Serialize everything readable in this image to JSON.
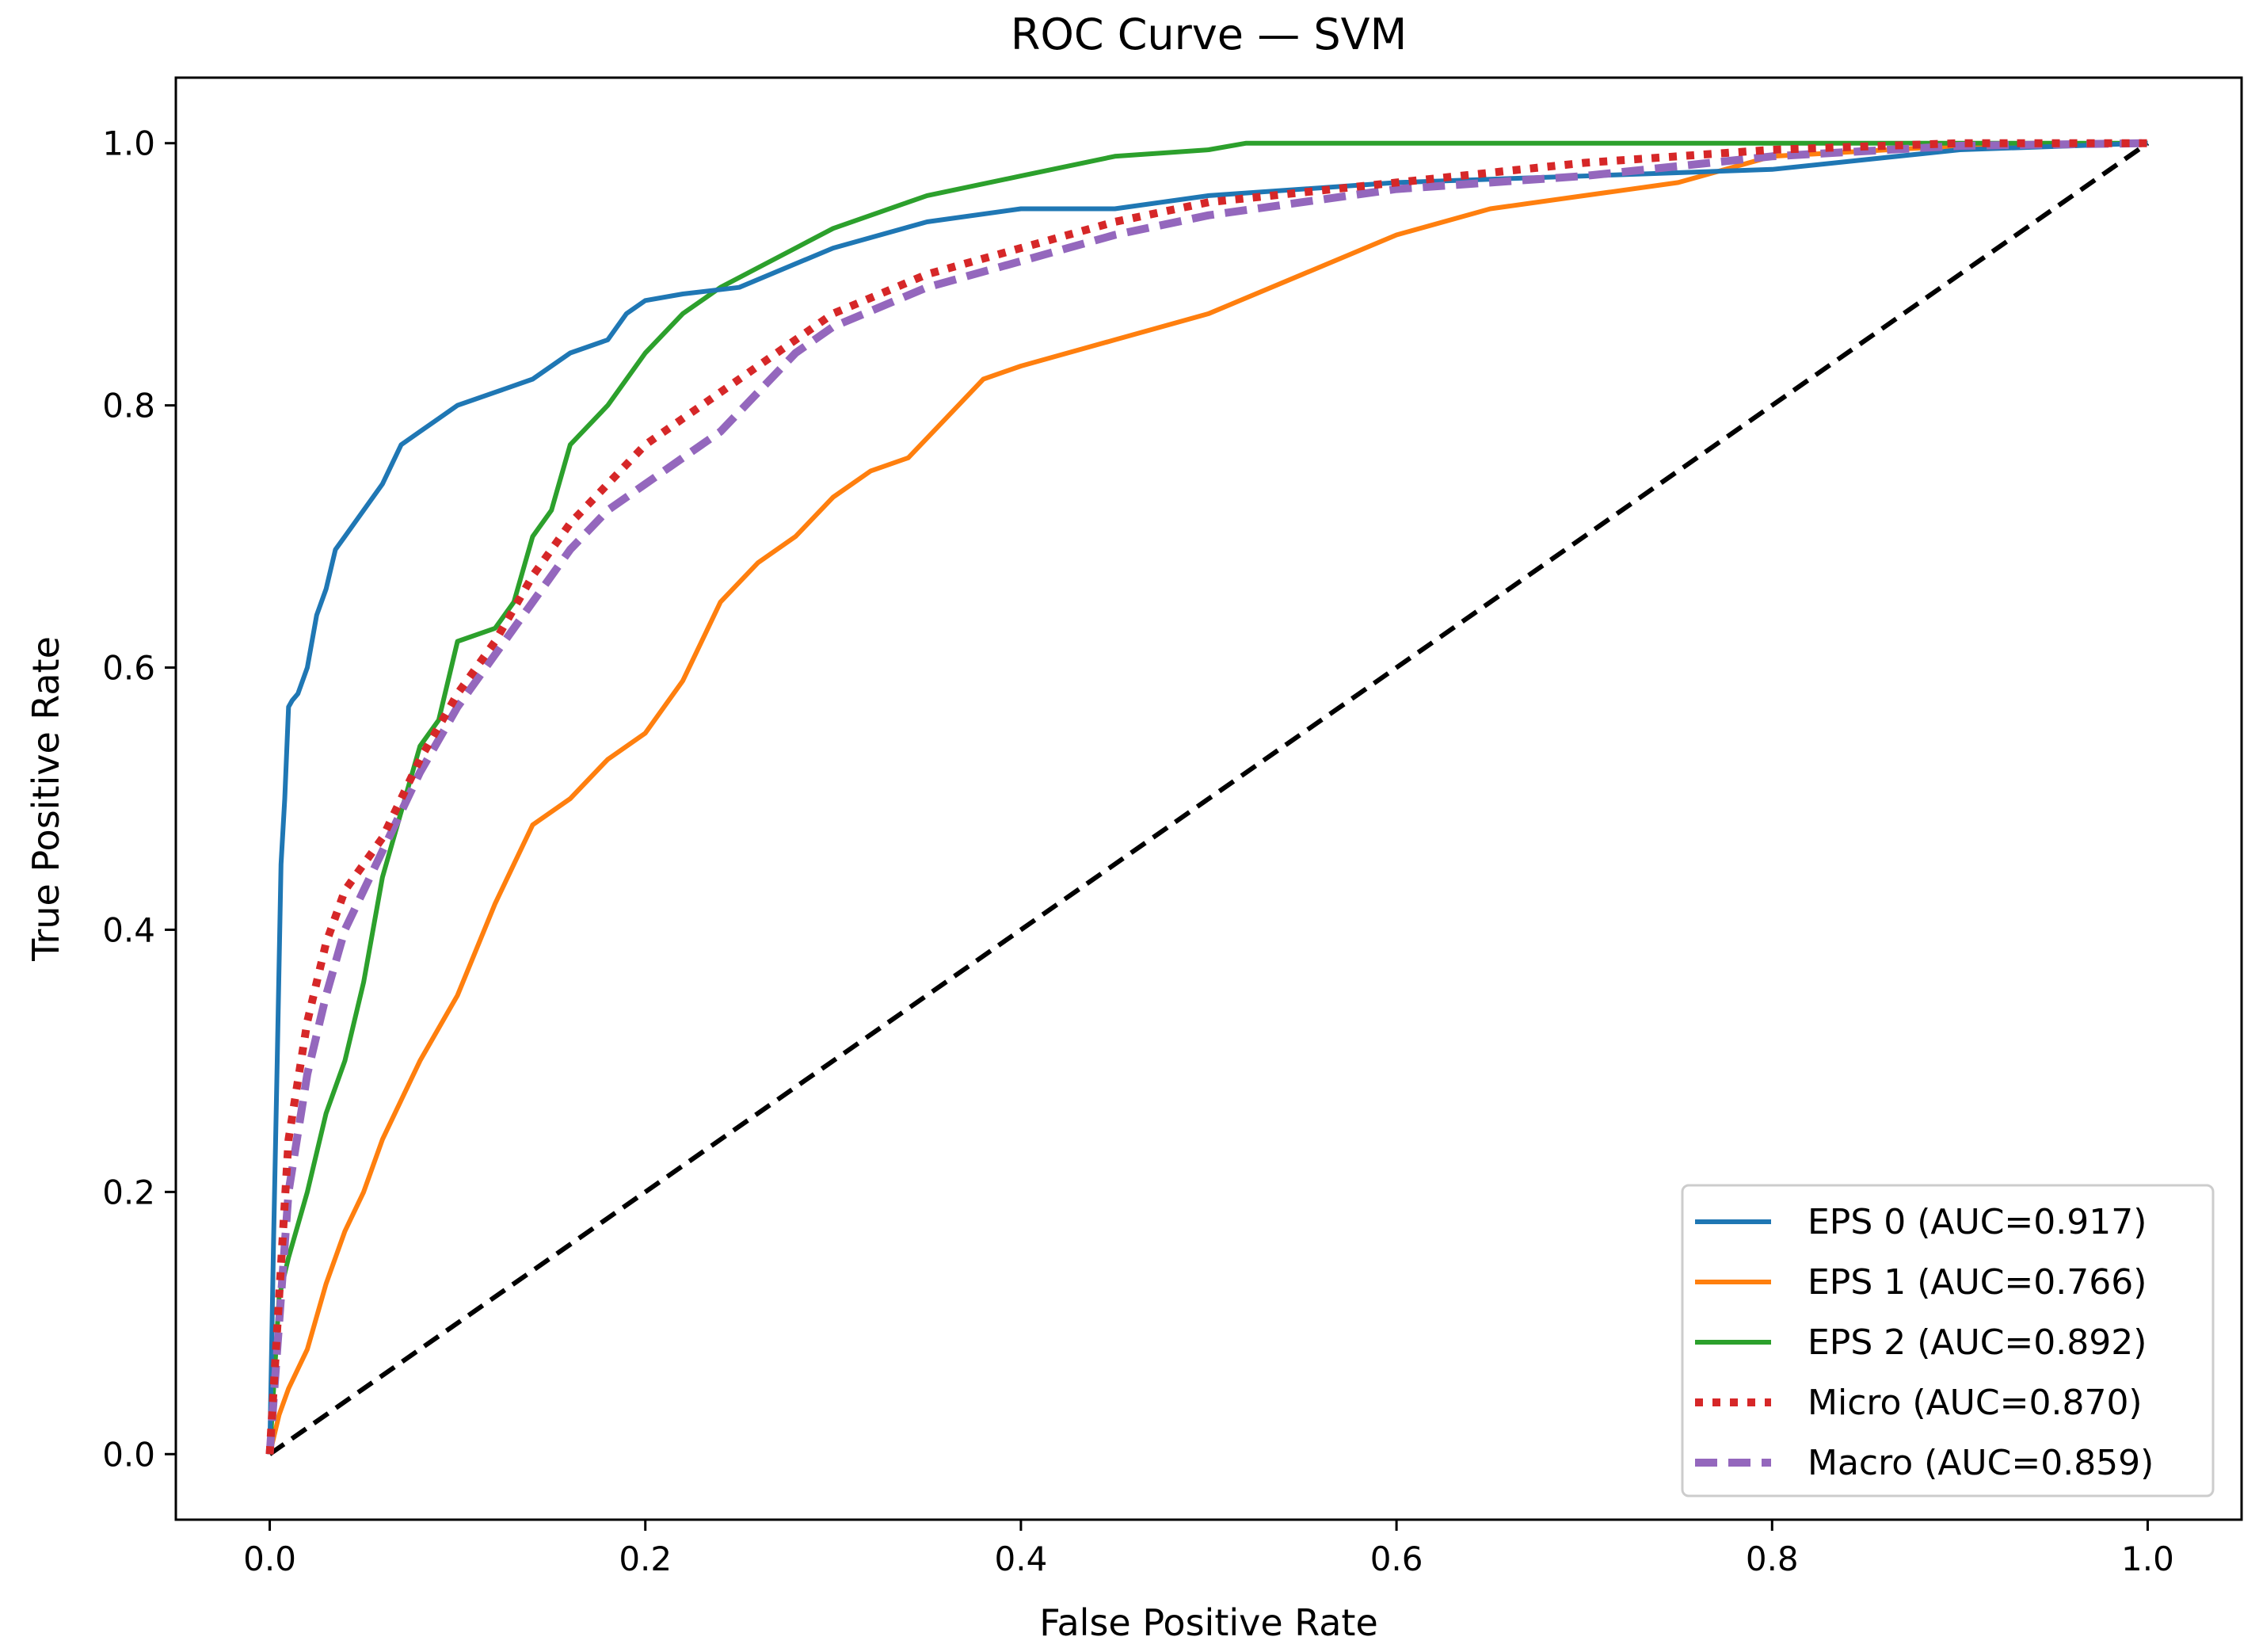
{
  "chart_data": {
    "type": "line",
    "title": "ROC Curve — SVM",
    "xlabel": "False Positive Rate",
    "ylabel": "True Positive Rate",
    "xlim": [
      -0.05,
      1.05
    ],
    "ylim": [
      -0.05,
      1.05
    ],
    "xticks": [
      0.0,
      0.2,
      0.4,
      0.6,
      0.8,
      1.0
    ],
    "yticks": [
      0.0,
      0.2,
      0.4,
      0.6,
      0.8,
      1.0
    ],
    "xtick_labels": [
      "0.0",
      "0.2",
      "0.4",
      "0.6",
      "0.8",
      "1.0"
    ],
    "ytick_labels": [
      "0.0",
      "0.2",
      "0.4",
      "0.6",
      "0.8",
      "1.0"
    ],
    "legend_position": "lower-right",
    "series": [
      {
        "name": "EPS 0",
        "label": "EPS 0 (AUC=0.917)",
        "auc": 0.917,
        "color": "#1f77b4",
        "style": "solid",
        "x": [
          0.0,
          0.002,
          0.004,
          0.006,
          0.008,
          0.01,
          0.012,
          0.015,
          0.02,
          0.025,
          0.03,
          0.035,
          0.04,
          0.05,
          0.06,
          0.07,
          0.08,
          0.09,
          0.1,
          0.12,
          0.14,
          0.16,
          0.18,
          0.19,
          0.2,
          0.22,
          0.25,
          0.3,
          0.35,
          0.4,
          0.45,
          0.5,
          0.6,
          0.7,
          0.8,
          0.9,
          1.0
        ],
        "y": [
          0.0,
          0.16,
          0.3,
          0.45,
          0.5,
          0.57,
          0.575,
          0.58,
          0.6,
          0.64,
          0.66,
          0.69,
          0.7,
          0.72,
          0.74,
          0.77,
          0.78,
          0.79,
          0.8,
          0.81,
          0.82,
          0.84,
          0.85,
          0.87,
          0.88,
          0.885,
          0.89,
          0.92,
          0.94,
          0.95,
          0.95,
          0.96,
          0.97,
          0.975,
          0.98,
          0.995,
          1.0
        ]
      },
      {
        "name": "EPS 1",
        "label": "EPS 1 (AUC=0.766)",
        "auc": 0.766,
        "color": "#ff7f0e",
        "style": "solid",
        "x": [
          0.0,
          0.005,
          0.01,
          0.02,
          0.03,
          0.04,
          0.05,
          0.06,
          0.07,
          0.08,
          0.1,
          0.12,
          0.13,
          0.14,
          0.16,
          0.18,
          0.2,
          0.22,
          0.24,
          0.26,
          0.28,
          0.3,
          0.32,
          0.34,
          0.36,
          0.38,
          0.4,
          0.45,
          0.5,
          0.55,
          0.6,
          0.65,
          0.7,
          0.75,
          0.8,
          0.9,
          1.0
        ],
        "y": [
          0.0,
          0.03,
          0.05,
          0.08,
          0.13,
          0.17,
          0.2,
          0.24,
          0.27,
          0.3,
          0.35,
          0.42,
          0.45,
          0.48,
          0.5,
          0.53,
          0.55,
          0.59,
          0.65,
          0.68,
          0.7,
          0.73,
          0.75,
          0.76,
          0.79,
          0.82,
          0.83,
          0.85,
          0.87,
          0.9,
          0.93,
          0.95,
          0.96,
          0.97,
          0.99,
          0.998,
          1.0
        ]
      },
      {
        "name": "EPS 2",
        "label": "EPS 2 (AUC=0.892)",
        "auc": 0.892,
        "color": "#2ca02c",
        "style": "solid",
        "x": [
          0.0,
          0.005,
          0.01,
          0.02,
          0.03,
          0.04,
          0.05,
          0.06,
          0.07,
          0.08,
          0.09,
          0.1,
          0.12,
          0.13,
          0.14,
          0.15,
          0.16,
          0.18,
          0.2,
          0.22,
          0.24,
          0.26,
          0.28,
          0.3,
          0.35,
          0.4,
          0.45,
          0.5,
          0.52,
          0.6,
          0.7,
          0.8,
          0.9,
          1.0
        ],
        "y": [
          0.0,
          0.12,
          0.15,
          0.2,
          0.26,
          0.3,
          0.36,
          0.44,
          0.49,
          0.54,
          0.56,
          0.62,
          0.63,
          0.65,
          0.7,
          0.72,
          0.77,
          0.8,
          0.84,
          0.87,
          0.89,
          0.905,
          0.92,
          0.935,
          0.96,
          0.975,
          0.99,
          0.995,
          1.0,
          1.0,
          1.0,
          1.0,
          1.0,
          1.0
        ]
      },
      {
        "name": "Micro",
        "label": "Micro (AUC=0.870)",
        "auc": 0.87,
        "color": "#d62728",
        "style": "dotted",
        "x": [
          0.0,
          0.005,
          0.01,
          0.02,
          0.03,
          0.04,
          0.05,
          0.06,
          0.07,
          0.08,
          0.1,
          0.12,
          0.14,
          0.16,
          0.18,
          0.2,
          0.22,
          0.24,
          0.26,
          0.28,
          0.3,
          0.35,
          0.4,
          0.45,
          0.5,
          0.6,
          0.7,
          0.8,
          0.9,
          1.0
        ],
        "y": [
          0.0,
          0.12,
          0.24,
          0.33,
          0.39,
          0.43,
          0.45,
          0.47,
          0.5,
          0.53,
          0.58,
          0.62,
          0.67,
          0.71,
          0.74,
          0.77,
          0.79,
          0.81,
          0.83,
          0.85,
          0.87,
          0.9,
          0.92,
          0.94,
          0.955,
          0.97,
          0.985,
          0.995,
          1.0,
          1.0
        ]
      },
      {
        "name": "Macro",
        "label": "Macro (AUC=0.859)",
        "auc": 0.859,
        "color": "#9467bd",
        "style": "dashed",
        "x": [
          0.0,
          0.005,
          0.01,
          0.02,
          0.03,
          0.04,
          0.05,
          0.06,
          0.07,
          0.08,
          0.1,
          0.12,
          0.14,
          0.16,
          0.18,
          0.2,
          0.22,
          0.24,
          0.26,
          0.28,
          0.3,
          0.35,
          0.4,
          0.45,
          0.5,
          0.6,
          0.7,
          0.8,
          0.9,
          1.0
        ],
        "y": [
          0.0,
          0.1,
          0.2,
          0.29,
          0.35,
          0.4,
          0.43,
          0.46,
          0.49,
          0.52,
          0.57,
          0.61,
          0.65,
          0.69,
          0.72,
          0.74,
          0.76,
          0.78,
          0.81,
          0.84,
          0.86,
          0.89,
          0.91,
          0.93,
          0.945,
          0.965,
          0.975,
          0.99,
          0.998,
          1.0
        ]
      },
      {
        "name": "Chance",
        "label": "",
        "color": "#000000",
        "style": "dashed",
        "x": [
          0.0,
          1.0
        ],
        "y": [
          0.0,
          1.0
        ]
      }
    ]
  }
}
